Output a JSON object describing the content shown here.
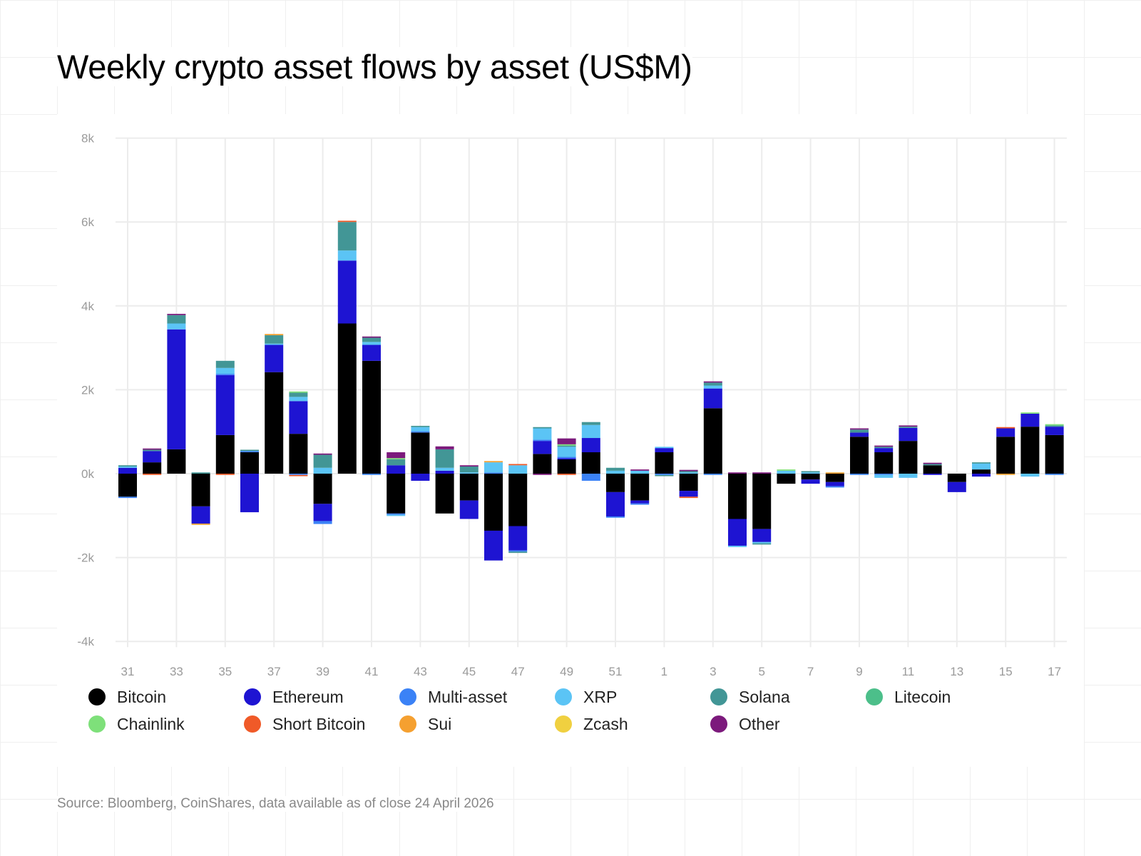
{
  "title": "Weekly crypto asset flows by asset (US$M)",
  "source": "Source: Bloomberg, CoinShares, data available as of close 24 April 2026",
  "chart_data": {
    "type": "bar",
    "stacked": true,
    "title": "Weekly crypto asset flows by asset (US$M)",
    "xlabel": "",
    "ylabel": "",
    "ylim": [
      -4000,
      8000
    ],
    "yticks": [
      -4000,
      -2000,
      0,
      2000,
      4000,
      6000,
      8000
    ],
    "ytick_labels": [
      "-4k",
      "-2k",
      "0k",
      "2k",
      "4k",
      "6k",
      "8k"
    ],
    "categories": [
      "31",
      "32",
      "33",
      "34",
      "35",
      "36",
      "37",
      "38",
      "39",
      "40",
      "41",
      "42",
      "43",
      "44",
      "45",
      "46",
      "47",
      "48",
      "49",
      "50",
      "51",
      "52",
      "1",
      "2",
      "3",
      "4",
      "5",
      "6",
      "7",
      "8",
      "9",
      "10",
      "11",
      "12",
      "13",
      "14",
      "15",
      "16",
      "17"
    ],
    "xtick_labels": [
      "31",
      "33",
      "35",
      "37",
      "39",
      "41",
      "43",
      "45",
      "47",
      "49",
      "51",
      "1",
      "3",
      "5",
      "7",
      "9",
      "11",
      "13",
      "15",
      "17"
    ],
    "grid": true,
    "legend_position": "bottom",
    "series": [
      {
        "name": "Bitcoin",
        "color": "#000000",
        "values": [
          -550,
          270,
          580,
          -780,
          920,
          510,
          2420,
          950,
          -720,
          3580,
          2690,
          -950,
          980,
          -950,
          -640,
          -1360,
          -1250,
          470,
          340,
          510,
          -440,
          -640,
          510,
          -410,
          1560,
          -1080,
          -1320,
          -240,
          -140,
          -200,
          880,
          510,
          780,
          200,
          -200,
          100,
          880,
          1120,
          920
        ]
      },
      {
        "name": "Ethereum",
        "color": "#1e14d2",
        "values": [
          140,
          270,
          2860,
          -410,
          1430,
          -920,
          650,
          780,
          -410,
          1500,
          380,
          200,
          -170,
          70,
          -440,
          -710,
          -580,
          310,
          30,
          340,
          -580,
          -70,
          100,
          -140,
          470,
          -640,
          -310,
          0,
          -100,
          -100,
          100,
          100,
          310,
          -30,
          -240,
          -70,
          200,
          310,
          200
        ]
      },
      {
        "name": "Multi-asset",
        "color": "#3b82f6",
        "values": [
          -30,
          0,
          0,
          0,
          30,
          30,
          0,
          -30,
          -70,
          0,
          -30,
          -30,
          30,
          0,
          0,
          30,
          -30,
          30,
          30,
          -170,
          -30,
          -30,
          -30,
          0,
          -30,
          0,
          0,
          0,
          0,
          -30,
          -30,
          -30,
          0,
          0,
          0,
          0,
          0,
          0,
          -30
        ]
      },
      {
        "name": "XRP",
        "color": "#5bc4f5",
        "values": [
          30,
          0,
          140,
          0,
          140,
          0,
          30,
          100,
          140,
          240,
          70,
          -30,
          100,
          70,
          30,
          240,
          200,
          270,
          240,
          310,
          70,
          70,
          30,
          30,
          70,
          -30,
          -30,
          70,
          30,
          0,
          0,
          -70,
          -100,
          0,
          0,
          140,
          0,
          -70,
          0
        ]
      },
      {
        "name": "Solana",
        "color": "#429696",
        "values": [
          30,
          30,
          200,
          30,
          170,
          30,
          200,
          100,
          310,
          680,
          100,
          140,
          30,
          440,
          140,
          0,
          -30,
          30,
          30,
          70,
          70,
          0,
          -30,
          30,
          70,
          0,
          -30,
          0,
          30,
          0,
          70,
          30,
          30,
          30,
          0,
          30,
          0,
          0,
          30
        ]
      },
      {
        "name": "Litecoin",
        "color": "#4cbf8a",
        "values": [
          0,
          0,
          0,
          0,
          0,
          0,
          0,
          0,
          0,
          0,
          0,
          0,
          0,
          0,
          0,
          0,
          0,
          0,
          0,
          0,
          0,
          0,
          0,
          0,
          0,
          0,
          0,
          0,
          0,
          0,
          0,
          0,
          0,
          0,
          0,
          0,
          0,
          0,
          0
        ]
      },
      {
        "name": "Chainlink",
        "color": "#7ee07a",
        "values": [
          0,
          0,
          0,
          0,
          0,
          0,
          0,
          30,
          0,
          0,
          0,
          30,
          0,
          0,
          0,
          0,
          0,
          0,
          30,
          0,
          0,
          0,
          0,
          0,
          0,
          0,
          0,
          30,
          0,
          0,
          0,
          0,
          0,
          0,
          0,
          0,
          0,
          30,
          30
        ]
      },
      {
        "name": "Short Bitcoin",
        "color": "#f05a28",
        "values": [
          0,
          -30,
          0,
          0,
          -30,
          0,
          0,
          -30,
          0,
          30,
          0,
          0,
          0,
          0,
          0,
          0,
          30,
          0,
          -30,
          0,
          0,
          0,
          0,
          -30,
          0,
          0,
          0,
          0,
          0,
          0,
          0,
          0,
          0,
          0,
          0,
          0,
          30,
          0,
          0
        ]
      },
      {
        "name": "Sui",
        "color": "#f5a030",
        "values": [
          0,
          0,
          0,
          -30,
          0,
          0,
          30,
          0,
          0,
          0,
          0,
          0,
          0,
          0,
          0,
          30,
          0,
          0,
          0,
          0,
          0,
          0,
          0,
          0,
          0,
          0,
          0,
          0,
          0,
          30,
          0,
          0,
          0,
          0,
          0,
          0,
          -30,
          0,
          0
        ]
      },
      {
        "name": "Zcash",
        "color": "#f0d040",
        "values": [
          0,
          0,
          0,
          0,
          0,
          0,
          0,
          0,
          0,
          0,
          0,
          0,
          0,
          0,
          0,
          0,
          0,
          0,
          0,
          0,
          0,
          0,
          0,
          0,
          0,
          0,
          0,
          0,
          0,
          0,
          0,
          0,
          0,
          0,
          0,
          0,
          0,
          0,
          0
        ]
      },
      {
        "name": "Other",
        "color": "#7c1a7c",
        "values": [
          0,
          30,
          30,
          0,
          0,
          0,
          0,
          0,
          30,
          0,
          30,
          140,
          0,
          70,
          30,
          0,
          0,
          -30,
          140,
          0,
          0,
          30,
          0,
          30,
          30,
          30,
          30,
          0,
          0,
          0,
          30,
          30,
          30,
          30,
          0,
          0,
          0,
          0,
          0
        ]
      }
    ]
  }
}
